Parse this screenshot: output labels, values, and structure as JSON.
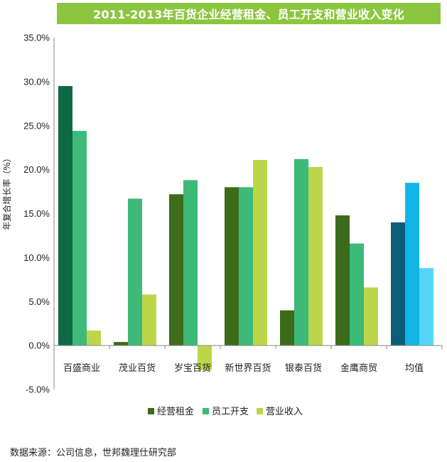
{
  "chart_data": {
    "type": "bar",
    "title": "2011-2013年百货企业经营租金、员工开支和营业收入变化",
    "ylabel": "年复合增长率（%）",
    "xlabel": "",
    "ylim": [
      -5,
      35
    ],
    "yticks": [
      "35.0%",
      "30.0%",
      "25.0%",
      "20.0%",
      "15.0%",
      "10.0%",
      "5.0%",
      "0.0%",
      "-5.0%"
    ],
    "ytick_values": [
      35,
      30,
      25,
      20,
      15,
      10,
      5,
      0,
      -5
    ],
    "categories": [
      "百盛商业",
      "茂业百货",
      "岁宝百货",
      "新世界百货",
      "银泰百货",
      "金鹰商贸",
      "均值"
    ],
    "series": [
      {
        "name": "经营租金",
        "values": [
          29.5,
          0.4,
          17.2,
          18.0,
          4.0,
          14.8,
          14.0
        ]
      },
      {
        "name": "员工开支",
        "values": [
          24.4,
          16.7,
          18.8,
          18.0,
          21.2,
          11.6,
          18.5
        ]
      },
      {
        "name": "营业收入",
        "values": [
          1.7,
          5.8,
          -2.8,
          21.1,
          20.3,
          6.6,
          8.8
        ]
      }
    ],
    "legend_position": "bottom",
    "grid": false
  },
  "colors": {
    "title_bg": "#8cc63f",
    "series_default": [
      "#3c6b1c",
      "#3dba78",
      "#bcd64a"
    ],
    "series_by_category": {
      "百盛商业": [
        "#0e6a45",
        "#3dba78",
        "#bcd64a"
      ],
      "均值": [
        "#0b5d7a",
        "#12b5e6",
        "#55d6f8"
      ]
    }
  },
  "source": "数据来源：公司信息，世邦魏理仕研究部"
}
